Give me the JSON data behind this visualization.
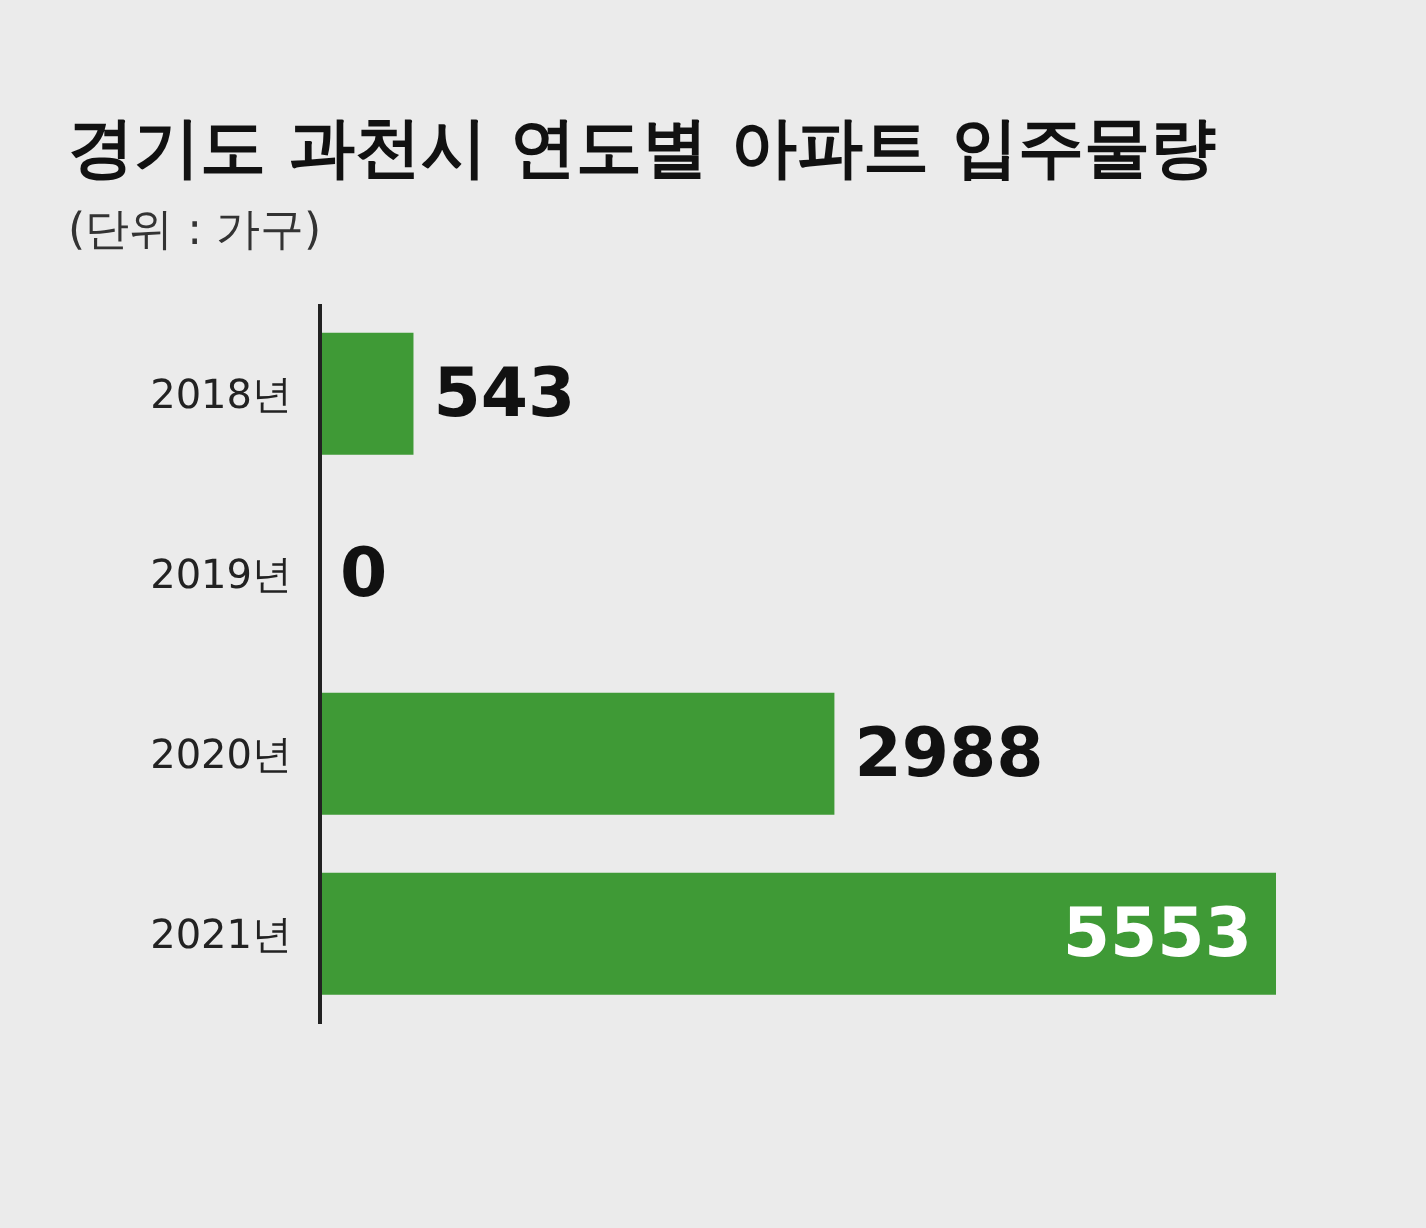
{
  "chart_data": {
    "type": "bar",
    "orientation": "horizontal",
    "title": "경기도 과천시 연도별 아파트 입주물량",
    "subtitle": "(단위 : 가구)",
    "categories": [
      "2018년",
      "2019년",
      "2020년",
      "2021년"
    ],
    "values": [
      543,
      0,
      2988,
      5553
    ],
    "color": "#3f9a36",
    "data_labels": true
  }
}
